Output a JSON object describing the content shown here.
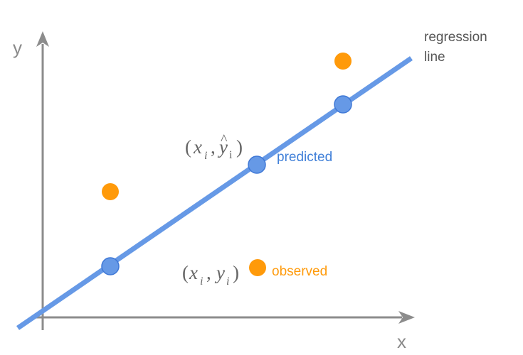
{
  "diagram": {
    "axis_x_label": "x",
    "axis_y_label": "y",
    "regression_label_line1": "regression",
    "regression_label_line2": "line",
    "predicted_label": "predicted",
    "observed_label": "observed",
    "predicted_notation": {
      "open": "(",
      "x": "x",
      "x_sub": "i",
      "comma": ",",
      "y": "y",
      "hat": "^",
      "y_sub": "i",
      "close": ")"
    },
    "observed_notation": {
      "open": "(",
      "x": "x",
      "x_sub": "i",
      "comma": ",",
      "y": "y",
      "y_sub": "i",
      "close": ")"
    }
  },
  "colors": {
    "axis": "#8c8c8c",
    "regression_line": "#6699e6",
    "predicted_point": "#6699e6",
    "predicted_point_stroke": "#3f78d6",
    "observed_point": "#ff9a0a",
    "predicted_text": "#3f7fd8",
    "observed_text": "#ff9a0a",
    "notation_text": "#666666"
  }
}
